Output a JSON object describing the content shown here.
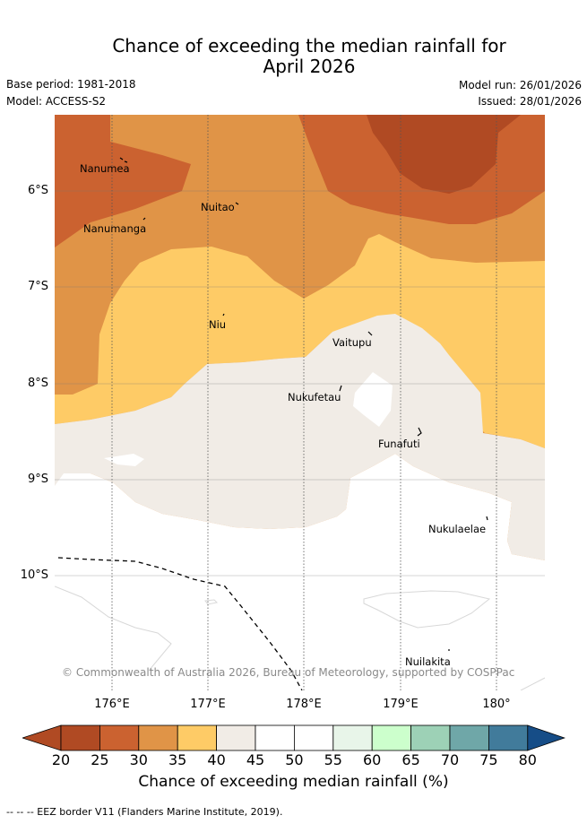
{
  "title_line1": "Chance of exceeding the median rainfall for",
  "title_line2": "April 2026",
  "base_period": "Base period: 1981-2018",
  "model": "Model: ACCESS-S2",
  "model_run": "Model run: 26/01/2026",
  "issued": "Issued: 28/01/2026",
  "copyright": "© Commonwealth of Australia 2026, Bureau of Meteorology, supported by COSPPac",
  "lat_labels": [
    "6°S",
    "7°S",
    "8°S",
    "9°S",
    "10°S"
  ],
  "lon_labels": [
    "176°E",
    "177°E",
    "178°E",
    "179°E",
    "180°"
  ],
  "places": [
    "Nanumea",
    "Nuitao",
    "Nanumanga",
    "Niu",
    "Vaitupu",
    "Nukufetau",
    "Funafuti",
    "Nukulaelae",
    "Nuilakita"
  ],
  "colorbar": {
    "ticks": [
      "20",
      "25",
      "30",
      "35",
      "40",
      "45",
      "50",
      "55",
      "60",
      "65",
      "70",
      "75",
      "80"
    ],
    "colors": [
      "#b04a23",
      "#b04a23",
      "#cb6230",
      "#e09447",
      "#fecb66",
      "#f1ece6",
      "#ffffff",
      "#ffffff",
      "#e8f5e9",
      "#ccffcc",
      "#9dd1b6",
      "#6fa7a8",
      "#417b9b",
      "#164d87"
    ],
    "title": "Chance of exceeding median rainfall (%)"
  },
  "footnote": "-- -- -- EEZ border V11 (Flanders Marine Institute, 2019)."
}
